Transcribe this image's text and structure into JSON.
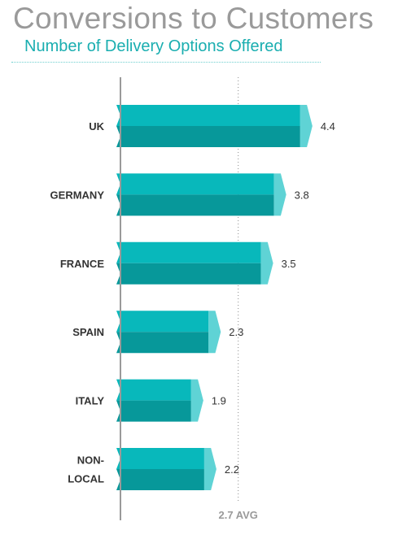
{
  "title": "Conversions to Customers",
  "subtitle": "Number of Delivery Options Offered",
  "colors": {
    "bar_top": "#08b8bb",
    "bar_bottom": "#07989a",
    "bar_cap": "#5fd3d5",
    "axis": "#9a9a9a",
    "avg_line": "#8a8a8a"
  },
  "chart_data": {
    "type": "bar",
    "orientation": "horizontal",
    "title": "Conversions to Customers",
    "subtitle": "Number of Delivery Options Offered",
    "categories": [
      [
        "UK"
      ],
      [
        "GERMANY"
      ],
      [
        "FRANCE"
      ],
      [
        "SPAIN"
      ],
      [
        "ITALY"
      ],
      [
        "NON-",
        "LOCAL"
      ]
    ],
    "values": [
      4.4,
      3.8,
      3.5,
      2.3,
      1.9,
      2.2
    ],
    "value_labels": [
      "4.4",
      "3.8",
      "3.5",
      "2.3",
      "1.9",
      "2.2"
    ],
    "reference_line": {
      "value": 2.7,
      "label": "2.7 AVG"
    },
    "xlim": [
      0,
      5
    ],
    "grid": false,
    "legend": "none"
  }
}
